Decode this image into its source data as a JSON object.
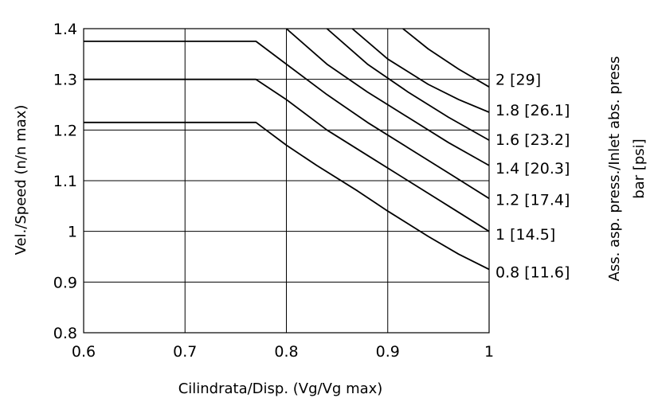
{
  "chart_data": {
    "type": "line",
    "xlabel": "Cilindrata/Disp. (Vg/Vg max)",
    "ylabel": "Vel./Speed (n/n max)",
    "right_label_line1": "Ass. asp. press./Inlet abs. press",
    "right_label_line2": "bar [psi]",
    "xlim": [
      0.6,
      1.0
    ],
    "ylim": [
      0.8,
      1.4
    ],
    "x_ticks": [
      {
        "v": 0.6,
        "label": "0.6"
      },
      {
        "v": 0.7,
        "label": "0.7"
      },
      {
        "v": 0.8,
        "label": "0.8"
      },
      {
        "v": 0.9,
        "label": "0.9"
      },
      {
        "v": 1.0,
        "label": "1"
      }
    ],
    "y_ticks": [
      {
        "v": 0.8,
        "label": "0.8"
      },
      {
        "v": 0.9,
        "label": "0.9"
      },
      {
        "v": 1.0,
        "label": "1"
      },
      {
        "v": 1.1,
        "label": "1.1"
      },
      {
        "v": 1.2,
        "label": "1.2"
      },
      {
        "v": 1.3,
        "label": "1.3"
      },
      {
        "v": 1.4,
        "label": "1.4"
      }
    ],
    "grid": true,
    "series": [
      {
        "name": "0.8 [11.6]",
        "label_y": 0.92,
        "x": [
          0.6,
          0.77,
          0.8,
          0.83,
          0.87,
          0.9,
          0.94,
          0.97,
          1.0
        ],
        "y": [
          1.215,
          1.215,
          1.17,
          1.13,
          1.08,
          1.04,
          0.99,
          0.955,
          0.925
        ]
      },
      {
        "name": "1 [14.5]",
        "label_y": 0.995,
        "x": [
          0.6,
          0.77,
          0.8,
          0.84,
          0.88,
          0.92,
          0.96,
          1.0
        ],
        "y": [
          1.3,
          1.3,
          1.26,
          1.2,
          1.15,
          1.1,
          1.05,
          1.0
        ]
      },
      {
        "name": "1.2 [17.4]",
        "label_y": 1.063,
        "x": [
          0.6,
          0.77,
          0.8,
          0.84,
          0.88,
          0.92,
          0.96,
          1.0
        ],
        "y": [
          1.375,
          1.375,
          1.33,
          1.27,
          1.215,
          1.165,
          1.115,
          1.065
        ]
      },
      {
        "name": "1.4 [20.3]",
        "label_y": 1.125,
        "x": [
          0.8,
          0.84,
          0.88,
          0.92,
          0.96,
          1.0
        ],
        "y": [
          1.4,
          1.33,
          1.275,
          1.225,
          1.175,
          1.13
        ]
      },
      {
        "name": "1.6 [23.2]",
        "label_y": 1.182,
        "x": [
          0.84,
          0.88,
          0.92,
          0.96,
          1.0
        ],
        "y": [
          1.4,
          1.33,
          1.275,
          1.225,
          1.18
        ]
      },
      {
        "name": "1.8 [26.1]",
        "label_y": 1.24,
        "x": [
          0.865,
          0.9,
          0.94,
          0.97,
          1.0
        ],
        "y": [
          1.4,
          1.34,
          1.29,
          1.26,
          1.235
        ]
      },
      {
        "name": "2 [29]",
        "label_y": 1.3,
        "x": [
          0.915,
          0.94,
          0.97,
          1.0
        ],
        "y": [
          1.4,
          1.36,
          1.32,
          1.285
        ]
      }
    ]
  }
}
